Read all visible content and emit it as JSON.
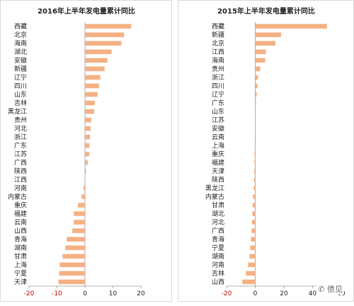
{
  "chart_data": [
    {
      "type": "bar",
      "orientation": "horizontal",
      "title": "2016年上半年发电量累计同比",
      "categories": [
        "西藏",
        "北京",
        "海南",
        "湖北",
        "安徽",
        "新疆",
        "辽宁",
        "四川",
        "山东",
        "吉林",
        "黑龙江",
        "贵州",
        "河北",
        "浙江",
        "广东",
        "江苏",
        "广西",
        "陕西",
        "江西",
        "河南",
        "内蒙古",
        "重庆",
        "福建",
        "云南",
        "山西",
        "青海",
        "湖南",
        "甘肃",
        "上海",
        "宁夏",
        "天津"
      ],
      "values": [
        16.5,
        14.0,
        13.0,
        9.5,
        8.0,
        7.0,
        5.5,
        5.0,
        4.5,
        3.5,
        3.3,
        2.2,
        2.0,
        1.8,
        1.6,
        1.5,
        1.0,
        0.4,
        0.0,
        -0.5,
        -1.2,
        -2.5,
        -4.0,
        -4.0,
        -4.5,
        -6.5,
        -7.0,
        -8.0,
        -9.0,
        -9.2,
        -9.5
      ],
      "xlim": [
        -20,
        20
      ],
      "xticks": [
        -20,
        -10,
        0,
        10,
        20
      ],
      "color": "#f4b183",
      "negative_tick_color": "#c00000"
    },
    {
      "type": "bar",
      "orientation": "horizontal",
      "title": "2015年上半年发电量累计同比",
      "categories": [
        "西藏",
        "新疆",
        "北京",
        "江西",
        "海南",
        "贵州",
        "浙江",
        "四川",
        "辽宁",
        "广东",
        "山东",
        "江苏",
        "安徽",
        "云南",
        "上海",
        "重庆",
        "福建",
        "天津",
        "陕西",
        "黑龙江",
        "内蒙古",
        "甘肃",
        "湖北",
        "河北",
        "广西",
        "青海",
        "宁夏",
        "湖南",
        "河南",
        "吉林",
        "山西"
      ],
      "values": [
        50.0,
        18.0,
        14.0,
        7.5,
        7.0,
        3.5,
        2.0,
        1.5,
        1.0,
        0.5,
        0.3,
        0.2,
        0.1,
        0.0,
        -0.3,
        -0.5,
        -0.6,
        -0.7,
        -0.8,
        -1.0,
        -1.5,
        -1.8,
        -2.0,
        -2.2,
        -2.5,
        -3.0,
        -3.5,
        -4.0,
        -5.0,
        -6.5,
        -9.0
      ],
      "xlim": [
        -20,
        60
      ],
      "xticks": [
        -20,
        0,
        20,
        40,
        60
      ],
      "color": "#f4b183",
      "negative_tick_color": "#c00000"
    }
  ],
  "watermark": {
    "icon": "wechat-bubble-icon",
    "text": "债见"
  }
}
